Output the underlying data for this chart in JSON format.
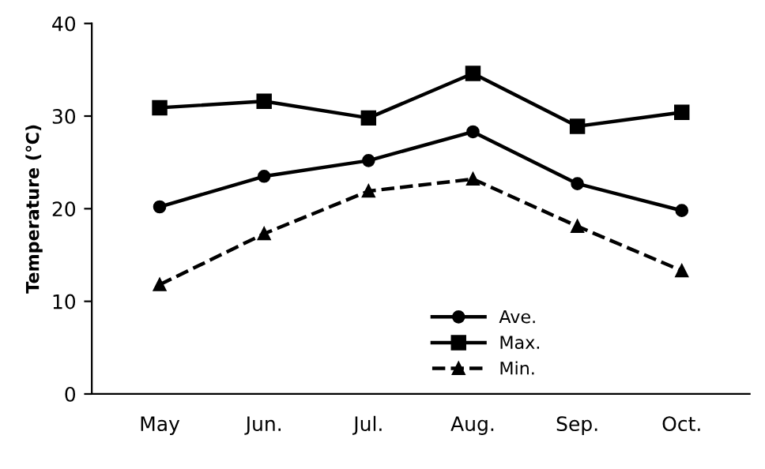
{
  "chart_data": {
    "type": "line",
    "ylabel": "Temperature (℃)",
    "categories": [
      "May",
      "Jun.",
      "Jul.",
      "Aug.",
      "Sep.",
      "Oct."
    ],
    "series": [
      {
        "name": "Ave.",
        "color": "#000000",
        "marker": "circle",
        "line_style": "solid",
        "values": [
          20.2,
          23.5,
          25.2,
          28.3,
          22.7,
          19.8
        ]
      },
      {
        "name": "Max.",
        "color": "#000000",
        "marker": "square",
        "line_style": "solid",
        "values": [
          30.9,
          31.6,
          29.8,
          34.6,
          28.9,
          30.4
        ]
      },
      {
        "name": "Min.",
        "color": "#000000",
        "marker": "triangle",
        "line_style": "dashed",
        "values": [
          11.8,
          17.3,
          21.9,
          23.2,
          18.1,
          13.3
        ]
      }
    ],
    "ylim": [
      0,
      40
    ],
    "yticks": [
      0,
      10,
      20,
      30,
      40
    ],
    "grid": false,
    "legend": "bottom"
  }
}
